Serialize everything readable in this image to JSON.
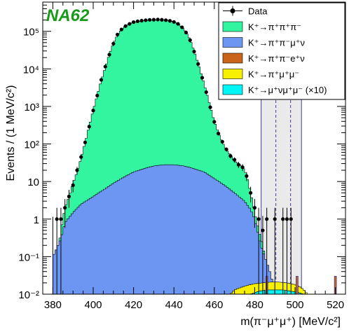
{
  "chart_data": {
    "type": "histogram",
    "experiment_label": "NA62",
    "experiment_color": "#1a9a1a",
    "xlabel": "m(π⁻μ⁺μ⁺) [MeV/c²]",
    "ylabel": "Events / (1 MeV/c²)",
    "x_range": [
      375,
      525
    ],
    "y_range": [
      0.01,
      600000
    ],
    "y_scale": "log",
    "x_ticks": [
      380,
      400,
      420,
      440,
      460,
      480,
      500,
      520
    ],
    "y_ticks": [
      {
        "value": 0.01,
        "label": "10⁻²"
      },
      {
        "value": 0.1,
        "label": "10⁻¹"
      },
      {
        "value": 1,
        "label": "1"
      },
      {
        "value": 10,
        "label": "10"
      },
      {
        "value": 100,
        "label": "10²"
      },
      {
        "value": 1000,
        "label": "10³"
      },
      {
        "value": 10000,
        "label": "10⁴"
      },
      {
        "value": 100000,
        "label": "10⁵"
      }
    ],
    "signal_region": {
      "range": [
        483.2,
        503.2
      ],
      "dashed_lines": [
        490.5,
        497.8
      ],
      "fill": "#eaeaea"
    },
    "legend_position": "top-right",
    "colors": {
      "k3pi": "#33f5a0",
      "kpipimunu": "#6d96f2",
      "kpipienu": "#c96418",
      "kpimumu": "#f7f000",
      "kmunumumu": "#00f5f5",
      "data": "#000000",
      "signal_lines": "#3c3c9a"
    },
    "legend": [
      {
        "key": "data",
        "label": "Data",
        "style": "marker"
      },
      {
        "key": "k3pi",
        "label": "K⁺→π⁺π⁺π⁻",
        "style": "box"
      },
      {
        "key": "kpipimunu",
        "label": "K⁺→π⁺π⁻μ⁺ν",
        "style": "box"
      },
      {
        "key": "kpipienu",
        "label": "K⁺→π⁺π⁻e⁺ν",
        "style": "box"
      },
      {
        "key": "kpimumu",
        "label": "K⁺→π⁺μ⁺μ⁻",
        "style": "box"
      },
      {
        "key": "kmunumumu",
        "label": "K⁺→μ⁺νμ⁺μ⁻ (×10)",
        "style": "box"
      }
    ],
    "series": [
      {
        "key": "k3pi",
        "points": [
          [
            381,
            0.03
          ],
          [
            384,
            0.5
          ],
          [
            386,
            2
          ],
          [
            388,
            4
          ],
          [
            390,
            9
          ],
          [
            392,
            18
          ],
          [
            394,
            42
          ],
          [
            396,
            110
          ],
          [
            398,
            300
          ],
          [
            400,
            800
          ],
          [
            402,
            2000
          ],
          [
            404,
            5000
          ],
          [
            406,
            11000
          ],
          [
            408,
            25000
          ],
          [
            410,
            48000
          ],
          [
            412,
            80000
          ],
          [
            414,
            110000
          ],
          [
            416,
            140000
          ],
          [
            418,
            160000
          ],
          [
            420,
            175000
          ],
          [
            424,
            190000
          ],
          [
            428,
            200000
          ],
          [
            432,
            205000
          ],
          [
            436,
            200000
          ],
          [
            440,
            180000
          ],
          [
            442,
            160000
          ],
          [
            444,
            130000
          ],
          [
            446,
            95000
          ],
          [
            448,
            60000
          ],
          [
            450,
            30000
          ],
          [
            452,
            14000
          ],
          [
            454,
            6000
          ],
          [
            456,
            2500
          ],
          [
            458,
            1000
          ],
          [
            460,
            400
          ],
          [
            462,
            200
          ],
          [
            464,
            110
          ],
          [
            466,
            70
          ],
          [
            468,
            50
          ],
          [
            470,
            35
          ],
          [
            472,
            30
          ],
          [
            474,
            25
          ],
          [
            476,
            15
          ],
          [
            478,
            5
          ],
          [
            480,
            1.5
          ],
          [
            482,
            0.5
          ],
          [
            484,
            0.2
          ],
          [
            486,
            0.05
          ],
          [
            488,
            0.02
          ]
        ]
      },
      {
        "key": "kpipimunu",
        "points": [
          [
            380,
            0.1
          ],
          [
            384,
            0.3
          ],
          [
            386,
            0.8
          ],
          [
            390,
            1.5
          ],
          [
            394,
            2.5
          ],
          [
            400,
            4
          ],
          [
            405,
            6
          ],
          [
            410,
            9
          ],
          [
            415,
            13
          ],
          [
            420,
            18
          ],
          [
            425,
            22
          ],
          [
            430,
            26
          ],
          [
            435,
            28
          ],
          [
            440,
            28
          ],
          [
            445,
            26
          ],
          [
            450,
            22
          ],
          [
            455,
            18
          ],
          [
            460,
            12
          ],
          [
            465,
            8
          ],
          [
            470,
            5
          ],
          [
            475,
            3
          ],
          [
            478,
            1.8
          ],
          [
            480,
            1
          ],
          [
            483,
            0.2
          ],
          [
            485,
            0.1
          ],
          [
            487,
            0.05
          ],
          [
            489,
            0.02
          ]
        ]
      },
      {
        "key": "kpimumu",
        "points": [
          [
            468,
            0.01
          ],
          [
            470,
            0.013
          ],
          [
            473,
            0.015
          ],
          [
            476,
            0.017
          ],
          [
            480,
            0.019
          ],
          [
            484,
            0.02
          ],
          [
            488,
            0.021
          ],
          [
            492,
            0.021
          ],
          [
            496,
            0.02
          ],
          [
            500,
            0.018
          ],
          [
            503,
            0.015
          ],
          [
            505,
            0.012
          ],
          [
            506,
            0.01
          ]
        ]
      },
      {
        "key": "kmunumumu",
        "points": [
          [
            478,
            0.01
          ],
          [
            482,
            0.012
          ],
          [
            486,
            0.013
          ],
          [
            490,
            0.013
          ],
          [
            494,
            0.013
          ],
          [
            498,
            0.012
          ],
          [
            502,
            0.011
          ],
          [
            504,
            0.01
          ]
        ]
      }
    ],
    "points": [
      [
        380,
        0
      ],
      [
        382,
        1
      ],
      [
        384,
        1
      ],
      [
        386,
        2
      ],
      [
        388,
        4
      ],
      [
        390,
        8
      ],
      [
        392,
        20
      ],
      [
        394,
        45
      ],
      [
        396,
        110
      ],
      [
        398,
        290
      ],
      [
        400,
        780
      ],
      [
        402,
        1950
      ],
      [
        404,
        5100
      ],
      [
        406,
        11500
      ],
      [
        408,
        24000
      ],
      [
        410,
        47000
      ],
      [
        412,
        82000
      ],
      [
        414,
        112000
      ],
      [
        416,
        138000
      ],
      [
        418,
        158000
      ],
      [
        420,
        176000
      ],
      [
        422,
        185000
      ],
      [
        424,
        192000
      ],
      [
        426,
        198000
      ],
      [
        428,
        202000
      ],
      [
        430,
        204000
      ],
      [
        432,
        206000
      ],
      [
        434,
        203000
      ],
      [
        436,
        198000
      ],
      [
        438,
        190000
      ],
      [
        440,
        178000
      ],
      [
        442,
        158000
      ],
      [
        444,
        128000
      ],
      [
        446,
        93000
      ],
      [
        448,
        58000
      ],
      [
        450,
        29000
      ],
      [
        452,
        13500
      ],
      [
        454,
        5800
      ],
      [
        456,
        2400
      ],
      [
        458,
        950
      ],
      [
        460,
        390
      ],
      [
        462,
        190
      ],
      [
        464,
        115
      ],
      [
        466,
        72
      ],
      [
        468,
        48
      ],
      [
        470,
        38
      ],
      [
        472,
        28
      ],
      [
        474,
        24
      ],
      [
        476,
        14
      ],
      [
        478,
        5
      ],
      [
        480,
        2
      ],
      [
        482,
        1
      ],
      [
        484,
        0.5
      ],
      [
        486,
        1
      ],
      [
        490,
        1
      ],
      [
        494,
        1
      ],
      [
        496,
        1
      ],
      [
        498,
        1
      ]
    ],
    "bkg_spikes": [
      {
        "key": "kpipienu",
        "x": 486,
        "y": 0.03
      },
      {
        "key": "kpipienu",
        "x": 501,
        "y": 0.03
      },
      {
        "key": "kpipienu",
        "x": 520,
        "y": 0.03
      }
    ]
  }
}
